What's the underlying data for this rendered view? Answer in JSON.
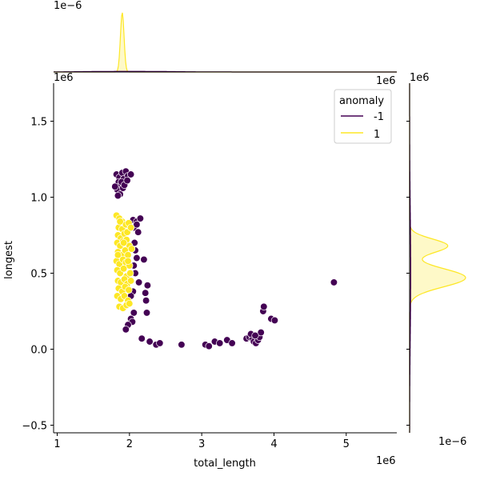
{
  "chart_data": {
    "type": "scatter",
    "title": "",
    "xlabel": "total_length",
    "ylabel": "longest",
    "x_offset_label": "1e6",
    "y_offset_label": "1e6",
    "xlim": [
      0.95,
      5.7
    ],
    "ylim": [
      -0.55,
      1.75
    ],
    "x_ticks": [
      1,
      2,
      3,
      4,
      5
    ],
    "y_ticks": [
      -0.5,
      0.0,
      0.5,
      1.0,
      1.5
    ],
    "x_tick_labels": [
      "1",
      "2",
      "3",
      "4",
      "5"
    ],
    "y_tick_labels": [
      "−0.5",
      "0.0",
      "0.5",
      "1.0",
      "1.5"
    ],
    "grid": false,
    "legend": {
      "title": "anomaly",
      "placement": "top-right",
      "entries": [
        {
          "label": "-1",
          "color": "#440154"
        },
        {
          "label": "1",
          "color": "#fde725"
        }
      ]
    },
    "series": [
      {
        "name": "-1",
        "color": "#440154",
        "points": [
          [
            1.82,
            1.15
          ],
          [
            1.86,
            1.13
          ],
          [
            1.9,
            1.16
          ],
          [
            1.85,
            1.1
          ],
          [
            1.88,
            1.08
          ],
          [
            1.92,
            1.12
          ],
          [
            1.95,
            1.17
          ],
          [
            1.83,
            1.05
          ],
          [
            1.87,
            1.02
          ],
          [
            1.91,
            1.06
          ],
          [
            1.98,
            1.14
          ],
          [
            2.02,
            1.15
          ],
          [
            1.84,
            1.01
          ],
          [
            1.89,
            1.1
          ],
          [
            1.93,
            1.08
          ],
          [
            1.8,
            1.07
          ],
          [
            1.97,
            1.11
          ],
          [
            2.05,
            0.85
          ],
          [
            2.1,
            0.84
          ],
          [
            2.15,
            0.86
          ],
          [
            2.06,
            0.8
          ],
          [
            2.1,
            0.82
          ],
          [
            2.12,
            0.77
          ],
          [
            2.07,
            0.7
          ],
          [
            2.08,
            0.65
          ],
          [
            2.1,
            0.6
          ],
          [
            2.2,
            0.59
          ],
          [
            2.06,
            0.55
          ],
          [
            2.08,
            0.5
          ],
          [
            2.13,
            0.44
          ],
          [
            2.25,
            0.42
          ],
          [
            2.22,
            0.37
          ],
          [
            2.05,
            0.38
          ],
          [
            2.02,
            0.35
          ],
          [
            2.23,
            0.32
          ],
          [
            2.06,
            0.24
          ],
          [
            2.02,
            0.2
          ],
          [
            2.04,
            0.18
          ],
          [
            2.24,
            0.24
          ],
          [
            1.98,
            0.16
          ],
          [
            1.95,
            0.13
          ],
          [
            2.17,
            0.07
          ],
          [
            2.28,
            0.05
          ],
          [
            2.37,
            0.03
          ],
          [
            2.42,
            0.04
          ],
          [
            2.72,
            0.03
          ],
          [
            3.05,
            0.03
          ],
          [
            3.1,
            0.02
          ],
          [
            3.18,
            0.05
          ],
          [
            3.25,
            0.04
          ],
          [
            3.35,
            0.06
          ],
          [
            3.42,
            0.04
          ],
          [
            3.62,
            0.07
          ],
          [
            3.66,
            0.08
          ],
          [
            3.7,
            0.07
          ],
          [
            3.72,
            0.05
          ],
          [
            3.75,
            0.04
          ],
          [
            3.78,
            0.06
          ],
          [
            3.8,
            0.08
          ],
          [
            3.82,
            0.11
          ],
          [
            3.68,
            0.1
          ],
          [
            3.74,
            0.09
          ],
          [
            3.85,
            0.25
          ],
          [
            3.86,
            0.28
          ],
          [
            3.96,
            0.2
          ],
          [
            4.01,
            0.19
          ],
          [
            4.83,
            0.44
          ]
        ]
      },
      {
        "name": "1",
        "color": "#fde725",
        "points": [
          [
            1.82,
            0.88
          ],
          [
            1.86,
            0.86
          ],
          [
            1.9,
            0.84
          ],
          [
            1.85,
            0.8
          ],
          [
            1.9,
            0.79
          ],
          [
            1.95,
            0.82
          ],
          [
            1.99,
            0.83
          ],
          [
            1.84,
            0.75
          ],
          [
            1.88,
            0.73
          ],
          [
            1.93,
            0.76
          ],
          [
            1.97,
            0.77
          ],
          [
            2.02,
            0.8
          ],
          [
            1.83,
            0.7
          ],
          [
            1.87,
            0.68
          ],
          [
            1.91,
            0.71
          ],
          [
            1.96,
            0.72
          ],
          [
            2.0,
            0.68
          ],
          [
            1.84,
            0.64
          ],
          [
            1.89,
            0.62
          ],
          [
            1.94,
            0.65
          ],
          [
            1.98,
            0.62
          ],
          [
            2.03,
            0.66
          ],
          [
            1.82,
            0.58
          ],
          [
            1.86,
            0.56
          ],
          [
            1.91,
            0.59
          ],
          [
            1.95,
            0.57
          ],
          [
            2.0,
            0.55
          ],
          [
            1.83,
            0.52
          ],
          [
            1.87,
            0.5
          ],
          [
            1.92,
            0.53
          ],
          [
            1.96,
            0.48
          ],
          [
            2.01,
            0.5
          ],
          [
            1.84,
            0.45
          ],
          [
            1.88,
            0.44
          ],
          [
            1.93,
            0.46
          ],
          [
            1.97,
            0.43
          ],
          [
            2.02,
            0.45
          ],
          [
            1.85,
            0.4
          ],
          [
            1.9,
            0.38
          ],
          [
            1.94,
            0.41
          ],
          [
            1.99,
            0.39
          ],
          [
            1.83,
            0.35
          ],
          [
            1.88,
            0.33
          ],
          [
            1.93,
            0.35
          ],
          [
            1.98,
            0.32
          ],
          [
            1.86,
            0.28
          ],
          [
            1.91,
            0.27
          ],
          [
            1.96,
            0.29
          ],
          [
            2.0,
            0.3
          ],
          [
            1.84,
            0.62
          ],
          [
            1.92,
            0.7
          ],
          [
            1.98,
            0.58
          ],
          [
            1.87,
            0.84
          ]
        ]
      }
    ],
    "x_marginal": {
      "exponent_label": "1e−6",
      "series": [
        {
          "name": "1",
          "color": "#fde725",
          "peak_x": 1.9,
          "spread": 0.025,
          "peak_level": 0.93
        },
        {
          "name": "-1",
          "color": "#440154",
          "peak_x": 2.0,
          "spread": 0.6,
          "peak_level": 0.01
        }
      ]
    },
    "y_marginal": {
      "exponent_label": "1e−6",
      "series": [
        {
          "name": "1",
          "color": "#fde725",
          "peaks": [
            [
              0.47,
              0.06,
              1.0
            ],
            [
              0.68,
              0.045,
              0.68
            ]
          ]
        },
        {
          "name": "-1",
          "color": "#440154",
          "peaks": [
            [
              0.5,
              0.4,
              0.02
            ]
          ]
        }
      ]
    }
  }
}
